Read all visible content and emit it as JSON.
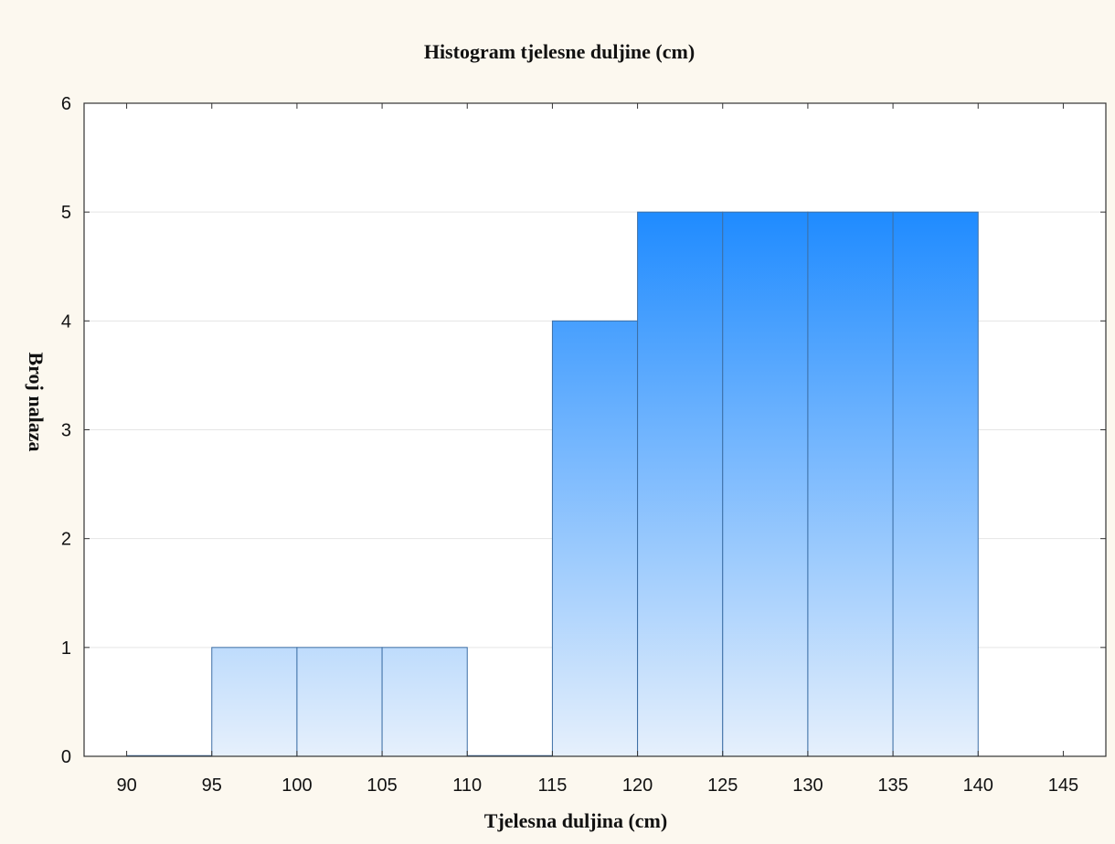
{
  "chart_data": {
    "type": "bar",
    "title": "Histogram tjelesne duljine (cm)",
    "xlabel": "Tjelesna duljina (cm)",
    "ylabel": "Broj nalaza",
    "bin_width": 5,
    "bins": [
      {
        "start": 90,
        "end": 95,
        "value": 0
      },
      {
        "start": 95,
        "end": 100,
        "value": 1
      },
      {
        "start": 100,
        "end": 105,
        "value": 1
      },
      {
        "start": 105,
        "end": 110,
        "value": 1
      },
      {
        "start": 110,
        "end": 115,
        "value": 0
      },
      {
        "start": 115,
        "end": 120,
        "value": 4
      },
      {
        "start": 120,
        "end": 125,
        "value": 5
      },
      {
        "start": 125,
        "end": 130,
        "value": 5
      },
      {
        "start": 130,
        "end": 135,
        "value": 5
      },
      {
        "start": 135,
        "end": 140,
        "value": 5
      }
    ],
    "xticks": [
      "90",
      "95",
      "100",
      "105",
      "110",
      "115",
      "120",
      "125",
      "130",
      "135",
      "140",
      "145"
    ],
    "yticks": [
      "0",
      "1",
      "2",
      "3",
      "4",
      "5",
      "6"
    ],
    "xlim": [
      87.5,
      147.5
    ],
    "ylim": [
      0,
      6
    ],
    "grid": true,
    "legend": "none",
    "colors": {
      "bar_top": "#1f8bff",
      "bar_bottom": "#e6f0fc",
      "bar_stroke": "#3d6fa5",
      "grid": "#e5e5e5",
      "frame": "#333333",
      "background": "#fcf8ef",
      "plot_background": "#ffffff"
    }
  }
}
